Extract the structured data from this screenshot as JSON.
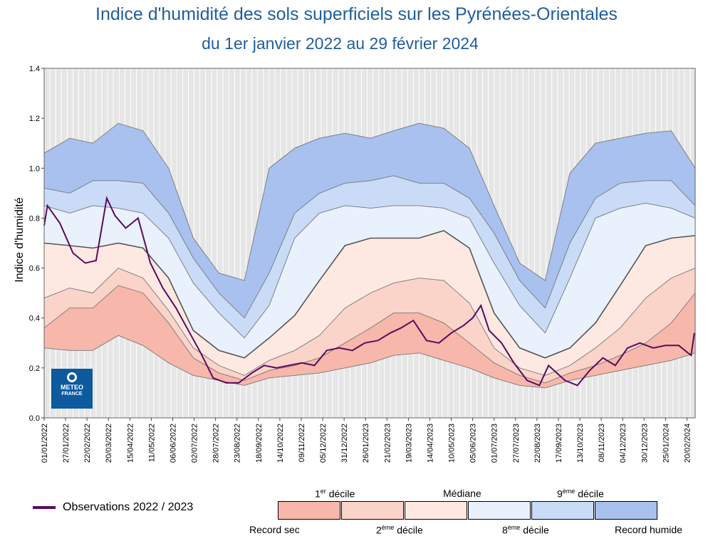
{
  "colors": {
    "record_sec_band": "#f7b7ab",
    "decile1_band": "#fad3c9",
    "decile2_band": "#fde9e2",
    "decile8_band": "#e8f1fc",
    "decile9_band": "#c9dbf6",
    "record_humide_band": "#a9c1ee",
    "observations": "#5b0a5e",
    "title": "#1f5e9c"
  },
  "logo": {
    "line1": "METEO",
    "line2": "FRANCE"
  },
  "legend": {
    "observations": "Observations 2022 / 2023",
    "decile1_base": "1",
    "decile1_sup": "er",
    "decile1_rest": " décile",
    "mediane": "Médiane",
    "decile9_base": "9",
    "decile9_sup": "ème",
    "decile9_rest": " décile",
    "record_sec": "Record sec",
    "decile2_base": "2",
    "decile2_sup": "ème",
    "decile2_rest": " décile",
    "decile8_base": "8",
    "decile8_sup": "ème",
    "decile8_rest": " décile",
    "record_humide": "Record humide"
  },
  "chart_data": {
    "type": "area",
    "title": "Indice d'humidité des sols superficiels sur les Pyrénées-Orientales",
    "subtitle": "du 1er janvier 2022 au 29 février 2024",
    "xlabel": "",
    "ylabel": "Indice d'humidité",
    "ylim": [
      0,
      1.4
    ],
    "yticks": [
      "0.0",
      "0.2",
      "0.4",
      "0.6",
      "0.8",
      "1.0",
      "1.2",
      "1.4"
    ],
    "xlim": [
      "2022-01-01",
      "2024-03-01"
    ],
    "grid": true,
    "x_ticks": [
      "01/01/2022",
      "27/01/2022",
      "22/02/2022",
      "20/03/2022",
      "15/04/2022",
      "11/05/2022",
      "06/06/2022",
      "02/07/2022",
      "28/07/2022",
      "23/08/2022",
      "18/09/2022",
      "14/10/2022",
      "09/11/2022",
      "05/12/2022",
      "31/12/2022",
      "26/01/2023",
      "21/02/2023",
      "19/03/2023",
      "14/04/2023",
      "10/05/2023",
      "05/06/2023",
      "01/07/2023",
      "27/07/2023",
      "22/08/2023",
      "17/09/2023",
      "13/10/2023",
      "08/11/2023",
      "04/12/2023",
      "30/12/2023",
      "25/01/2024",
      "20/02/2024"
    ],
    "dates": [
      "2022-01-01",
      "2022-02-01",
      "2022-03-01",
      "2022-04-01",
      "2022-05-01",
      "2022-06-01",
      "2022-07-01",
      "2022-08-01",
      "2022-09-01",
      "2022-10-01",
      "2022-11-01",
      "2022-12-01",
      "2023-01-01",
      "2023-02-01",
      "2023-03-01",
      "2023-04-01",
      "2023-05-01",
      "2023-06-01",
      "2023-07-01",
      "2023-08-01",
      "2023-09-01",
      "2023-10-01",
      "2023-11-01",
      "2023-12-01",
      "2024-01-01",
      "2024-02-01",
      "2024-03-01"
    ],
    "series": [
      {
        "name": "Record sec",
        "values": [
          0.28,
          0.27,
          0.27,
          0.33,
          0.29,
          0.22,
          0.17,
          0.15,
          0.13,
          0.16,
          0.17,
          0.18,
          0.2,
          0.22,
          0.25,
          0.26,
          0.23,
          0.2,
          0.16,
          0.13,
          0.12,
          0.15,
          0.17,
          0.19,
          0.21,
          0.23,
          0.26
        ]
      },
      {
        "name": "1er décile",
        "values": [
          0.36,
          0.44,
          0.44,
          0.53,
          0.5,
          0.38,
          0.24,
          0.18,
          0.15,
          0.19,
          0.21,
          0.24,
          0.3,
          0.36,
          0.42,
          0.42,
          0.38,
          0.3,
          0.22,
          0.17,
          0.14,
          0.18,
          0.21,
          0.25,
          0.3,
          0.38,
          0.5
        ]
      },
      {
        "name": "2ème décile",
        "values": [
          0.48,
          0.52,
          0.5,
          0.6,
          0.56,
          0.43,
          0.28,
          0.21,
          0.17,
          0.23,
          0.27,
          0.33,
          0.44,
          0.5,
          0.54,
          0.56,
          0.55,
          0.46,
          0.28,
          0.2,
          0.17,
          0.21,
          0.28,
          0.36,
          0.48,
          0.56,
          0.6
        ]
      },
      {
        "name": "Médiane",
        "values": [
          0.7,
          0.69,
          0.68,
          0.7,
          0.68,
          0.56,
          0.35,
          0.27,
          0.24,
          0.32,
          0.41,
          0.55,
          0.69,
          0.72,
          0.72,
          0.72,
          0.75,
          0.68,
          0.42,
          0.28,
          0.24,
          0.28,
          0.38,
          0.53,
          0.69,
          0.72,
          0.73
        ]
      },
      {
        "name": "8ème décile",
        "values": [
          0.85,
          0.82,
          0.85,
          0.84,
          0.82,
          0.72,
          0.54,
          0.42,
          0.32,
          0.45,
          0.72,
          0.82,
          0.85,
          0.84,
          0.85,
          0.85,
          0.84,
          0.8,
          0.62,
          0.45,
          0.34,
          0.56,
          0.8,
          0.84,
          0.86,
          0.84,
          0.8
        ]
      },
      {
        "name": "9ème décile",
        "values": [
          0.92,
          0.9,
          0.95,
          0.95,
          0.94,
          0.82,
          0.64,
          0.5,
          0.4,
          0.58,
          0.82,
          0.9,
          0.94,
          0.95,
          0.97,
          0.94,
          0.94,
          0.88,
          0.74,
          0.55,
          0.44,
          0.7,
          0.88,
          0.94,
          0.95,
          0.95,
          0.85
        ]
      },
      {
        "name": "Record humide",
        "values": [
          1.06,
          1.12,
          1.1,
          1.18,
          1.15,
          1.0,
          0.72,
          0.58,
          0.55,
          1.0,
          1.08,
          1.12,
          1.14,
          1.12,
          1.15,
          1.18,
          1.16,
          1.08,
          0.85,
          0.62,
          0.55,
          0.98,
          1.1,
          1.12,
          1.14,
          1.15,
          1.0
        ]
      }
    ],
    "observations": {
      "name": "Observations 2022 / 2023",
      "dates": [
        "2022-01-01",
        "2022-01-05",
        "2022-01-20",
        "2022-02-05",
        "2022-02-20",
        "2022-03-05",
        "2022-03-18",
        "2022-03-28",
        "2022-04-10",
        "2022-04-25",
        "2022-05-10",
        "2022-05-25",
        "2022-06-10",
        "2022-06-25",
        "2022-07-10",
        "2022-07-25",
        "2022-08-10",
        "2022-08-25",
        "2022-09-10",
        "2022-09-25",
        "2022-10-10",
        "2022-10-25",
        "2022-11-10",
        "2022-11-25",
        "2022-12-10",
        "2022-12-25",
        "2023-01-10",
        "2023-01-25",
        "2023-02-10",
        "2023-02-25",
        "2023-03-10",
        "2023-03-25",
        "2023-04-10",
        "2023-04-25",
        "2023-05-10",
        "2023-05-25",
        "2023-06-05",
        "2023-06-15",
        "2023-06-25",
        "2023-07-10",
        "2023-07-25",
        "2023-08-10",
        "2023-08-25",
        "2023-09-05",
        "2023-09-15",
        "2023-09-25",
        "2023-10-10",
        "2023-10-25",
        "2023-11-10",
        "2023-11-25",
        "2023-12-10",
        "2023-12-25",
        "2024-01-10",
        "2024-01-25",
        "2024-02-10",
        "2024-02-25",
        "2024-02-29"
      ],
      "values": [
        0.77,
        0.85,
        0.78,
        0.66,
        0.62,
        0.63,
        0.88,
        0.81,
        0.76,
        0.8,
        0.62,
        0.52,
        0.44,
        0.35,
        0.26,
        0.16,
        0.14,
        0.14,
        0.18,
        0.21,
        0.2,
        0.21,
        0.22,
        0.21,
        0.27,
        0.28,
        0.27,
        0.3,
        0.31,
        0.34,
        0.36,
        0.39,
        0.31,
        0.3,
        0.34,
        0.37,
        0.4,
        0.45,
        0.35,
        0.3,
        0.22,
        0.15,
        0.13,
        0.21,
        0.18,
        0.15,
        0.13,
        0.19,
        0.24,
        0.21,
        0.28,
        0.3,
        0.28,
        0.29,
        0.29,
        0.25,
        0.34
      ]
    }
  }
}
